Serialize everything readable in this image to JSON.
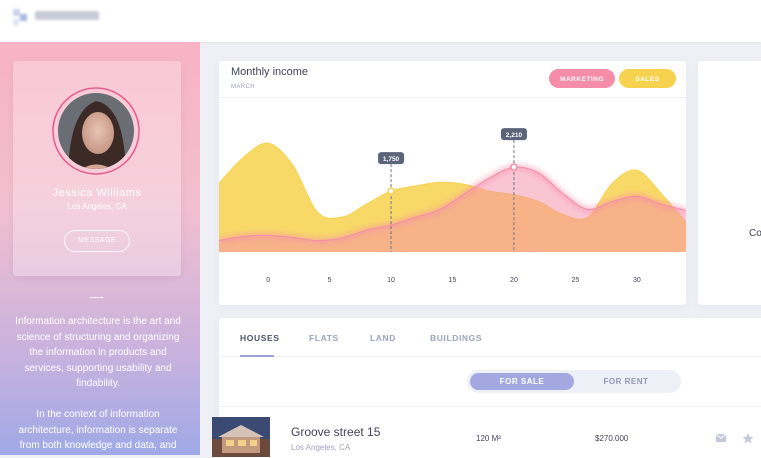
{
  "sidebar": {
    "name": "Jessica Williams",
    "location": "Los Angeles, CA",
    "button": "MESSAGE",
    "paragraphs": [
      "Information architecture is the art and science of structuring and organizing the information in products and services, supporting usability and findability.",
      "In the context of information architecture, information is separate from both knowledge and data, and"
    ]
  },
  "chart_data": {
    "type": "area",
    "title": "Monthly income",
    "subtitle": "MARCH",
    "x": [
      -4,
      -2,
      0,
      2,
      4,
      6,
      8,
      10,
      12,
      14,
      16,
      18,
      20,
      22,
      24,
      26,
      28,
      30,
      32,
      34
    ],
    "series": [
      {
        "name": "MARKETING",
        "color": "#f58ca8",
        "values": [
          800,
          880,
          900,
          860,
          800,
          850,
          1000,
          1100,
          1250,
          1400,
          1700,
          2000,
          2210,
          2100,
          1700,
          1400,
          1550,
          1650,
          1500,
          1380
        ],
        "value_labels": [
          null,
          null,
          null,
          null,
          null,
          null,
          null,
          null,
          null,
          null,
          null,
          null,
          "2,210",
          null,
          null,
          null,
          null,
          null,
          null,
          null
        ]
      },
      {
        "name": "SALES",
        "color": "#f7d24e",
        "values": [
          1900,
          2400,
          2670,
          2250,
          1350,
          1250,
          1500,
          1750,
          1850,
          1920,
          1880,
          1750,
          1680,
          1550,
          1300,
          1250,
          1900,
          2150,
          1700,
          1150
        ],
        "value_labels": [
          null,
          null,
          null,
          null,
          null,
          null,
          null,
          "1,750",
          null,
          null,
          null,
          null,
          null,
          null,
          null,
          null,
          null,
          null,
          null,
          null
        ]
      }
    ],
    "xlim": [
      -4,
      34
    ],
    "ylim": [
      580,
      3500
    ],
    "xticks": [
      0,
      5,
      10,
      15,
      20,
      25,
      30
    ]
  },
  "side_card": {
    "text": "Co"
  },
  "tabs": [
    "HOUSES",
    "FLATS",
    "LAND",
    "BUILDINGS"
  ],
  "toggle": [
    "FOR SALE",
    "FOR RENT"
  ],
  "listing": {
    "title": "Groove street 15",
    "location": "Los Angeles, CA",
    "area": "120 M²",
    "price": "$270.000"
  }
}
